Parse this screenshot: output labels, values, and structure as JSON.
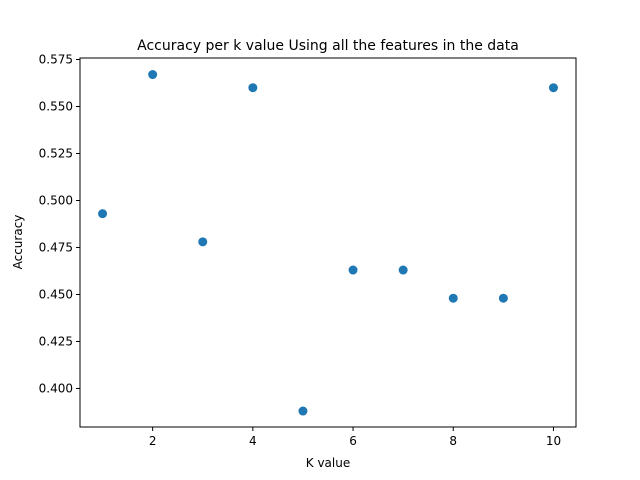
{
  "chart_data": {
    "type": "scatter",
    "title": "Accuracy per k value Using all the features in the data",
    "xlabel": "K value",
    "ylabel": "Accuracy",
    "x": [
      1,
      2,
      3,
      4,
      5,
      6,
      7,
      8,
      9,
      10
    ],
    "y": [
      0.493,
      0.567,
      0.478,
      0.56,
      0.388,
      0.463,
      0.463,
      0.448,
      0.448,
      0.56
    ],
    "xlim": [
      0.55,
      10.45
    ],
    "ylim": [
      0.3795,
      0.5758
    ],
    "xticks": [
      2,
      4,
      6,
      8,
      10
    ],
    "xtick_labels": [
      "2",
      "4",
      "6",
      "8",
      "10"
    ],
    "yticks": [
      0.4,
      0.425,
      0.45,
      0.475,
      0.5,
      0.525,
      0.55,
      0.575
    ],
    "ytick_labels": [
      "0.400",
      "0.425",
      "0.450",
      "0.475",
      "0.500",
      "0.525",
      "0.550",
      "0.575"
    ],
    "marker_color": "#1f77b4",
    "grid": false
  }
}
